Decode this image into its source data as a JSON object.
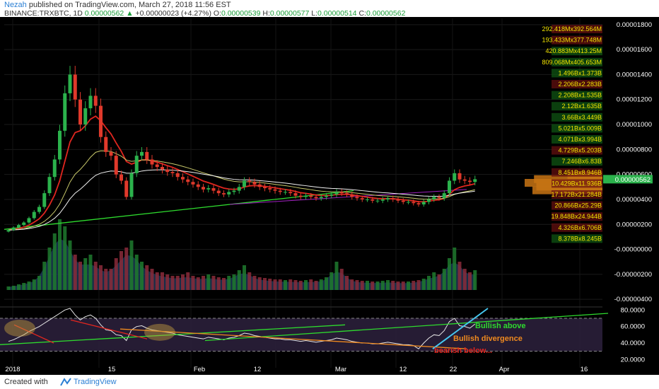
{
  "header": {
    "author": "Nezah",
    "published_text": " published on TradingView.com, March 27, 2018 11:56 EST",
    "symbol": "BINANCE:TRXBTC, 1D",
    "last": "0.00000562",
    "change_arrow": "▲",
    "change": "+0.00000023 (+4.27%)",
    "o_label": "O:",
    "o": "0.00000539",
    "h_label": "H:",
    "h": "0.00000577",
    "l_label": "L:",
    "l": "0.00000514",
    "c_label": "C:",
    "c": "0.00000562"
  },
  "footer": {
    "created_with": "Created with",
    "brand": "TradingView"
  },
  "colors": {
    "background": "#000000",
    "up_candle": "#2bb24c",
    "down_candle": "#e0392b",
    "ema_fast": "#e0261f",
    "ema_mid": "#c8c86a",
    "ema_slow": "#f0f0f0",
    "trend_green": "#2edb2e",
    "volume_up": "#1e7a2e",
    "volume_down": "#8a2a3a",
    "volume_area": "#1c3a5a",
    "rsi_line": "#e8e8e8",
    "rsi_band": "#2a1f3a",
    "rsi_uptrend": "#46c8f0",
    "rsi_downtrend": "#f08a1e",
    "axis_text": "#ffffff",
    "label_yellow": "#f5e600",
    "price_tag": "#2bb24c",
    "volume_profile": "#c87414"
  },
  "price_axis": {
    "labels": [
      "0.00001800",
      "0.00001600",
      "0.00001400",
      "0.00001200",
      "0.00001000",
      "0.00000800",
      "0.00000600",
      "0.00000400",
      "0.00000200",
      "-0.00000000",
      "-0.00000200",
      "-0.00000400"
    ],
    "values": [
      1.8e-05,
      1.6e-05,
      1.4e-05,
      1.2e-05,
      1e-05,
      8e-06,
      6e-06,
      4e-06,
      2e-06,
      0,
      -2e-06,
      -4e-06
    ],
    "last_tag": "0.00000562"
  },
  "rsi_axis": {
    "labels": [
      "80.0000",
      "60.0000",
      "40.0000",
      "20.0000"
    ],
    "values": [
      80,
      60,
      40,
      20
    ]
  },
  "time_axis": {
    "labels": [
      "2018",
      "15",
      "Feb",
      "12",
      "Mar",
      "12",
      "22",
      "Apr",
      "16"
    ]
  },
  "volume_labels": [
    {
      "text": "292.418Mx392.564M",
      "status": "down"
    },
    {
      "text": "193.433Mx377.748M",
      "status": "down"
    },
    {
      "text": "420.883Mx413.25M",
      "status": "up"
    },
    {
      "text": "809.068Mx405.653M",
      "status": "up"
    },
    {
      "text": "1.496Bx1.373B",
      "status": "up"
    },
    {
      "text": "2.206Bx2.283B",
      "status": "down"
    },
    {
      "text": "2.208Bx1.535B",
      "status": "up"
    },
    {
      "text": "2.12Bx1.635B",
      "status": "up"
    },
    {
      "text": "3.66Bx3.449B",
      "status": "up"
    },
    {
      "text": "5.021Bx5.009B",
      "status": "up"
    },
    {
      "text": "4.071Bx3.994B",
      "status": "up"
    },
    {
      "text": "4.729Bx5.203B",
      "status": "down"
    },
    {
      "text": "7.246Bx6.83B",
      "status": "up"
    },
    {
      "text": "8.451Bx8.946B",
      "status": "down"
    },
    {
      "text": "10.429Bx11.936B",
      "status": "down"
    },
    {
      "text": "17.172Bx21.284B",
      "status": "down"
    },
    {
      "text": "20.866Bx25.29B",
      "status": "down"
    },
    {
      "text": "19.848Bx24.944B",
      "status": "down"
    },
    {
      "text": "4.326Bx6.706B",
      "status": "down"
    },
    {
      "text": "8.378Bx8.245B",
      "status": "up"
    }
  ],
  "annotations": {
    "bullish_above": "Bullish above",
    "bullish_divergence": "Bullish divergence",
    "bearish_below": "bearish below..."
  },
  "chart_data": {
    "type": "candlestick",
    "symbol": "BINANCE:TRXBTC",
    "interval": "1D",
    "x": [
      "Dec 26",
      "Dec 27",
      "Dec 28",
      "Dec 29",
      "Dec 30",
      "Dec 31",
      "Jan 1",
      "Jan 2",
      "Jan 3",
      "Jan 4",
      "Jan 5",
      "Jan 6",
      "Jan 7",
      "Jan 8",
      "Jan 9",
      "Jan 10",
      "Jan 11",
      "Jan 12",
      "Jan 13",
      "Jan 14",
      "Jan 15",
      "Jan 16",
      "Jan 17",
      "Jan 18",
      "Jan 19",
      "Jan 20",
      "Jan 21",
      "Jan 22",
      "Jan 23",
      "Jan 24",
      "Jan 25",
      "Jan 26",
      "Jan 27",
      "Jan 28",
      "Jan 29",
      "Jan 30",
      "Jan 31",
      "Feb 1",
      "Feb 2",
      "Feb 3",
      "Feb 4",
      "Feb 5",
      "Feb 6",
      "Feb 7",
      "Feb 8",
      "Feb 9",
      "Feb 10",
      "Feb 11",
      "Feb 12",
      "Feb 13",
      "Feb 14",
      "Feb 15",
      "Feb 16",
      "Feb 17",
      "Feb 18",
      "Feb 19",
      "Feb 20",
      "Feb 21",
      "Feb 22",
      "Feb 23",
      "Feb 24",
      "Feb 25",
      "Feb 26",
      "Feb 27",
      "Feb 28",
      "Mar 1",
      "Mar 2",
      "Mar 3",
      "Mar 4",
      "Mar 5",
      "Mar 6",
      "Mar 7",
      "Mar 8",
      "Mar 9",
      "Mar 10",
      "Mar 11",
      "Mar 12",
      "Mar 13",
      "Mar 14",
      "Mar 15",
      "Mar 16",
      "Mar 17",
      "Mar 18",
      "Mar 19",
      "Mar 20",
      "Mar 21",
      "Mar 22",
      "Mar 23",
      "Mar 24",
      "Mar 25",
      "Mar 26",
      "Mar 27"
    ],
    "close": [
      1.55e-06,
      1.75e-06,
      1.95e-06,
      2.15e-06,
      2.5e-06,
      3e-06,
      3.4e-06,
      4.5e-06,
      5.8e-06,
      7.2e-06,
      9.5e-06,
      1.25e-05,
      1.4e-05,
      1.2e-05,
      1e-05,
      1.13e-05,
      1.23e-05,
      1.15e-05,
      9e-06,
      7.8e-06,
      7.5e-06,
      6e-06,
      5.5e-06,
      4.2e-06,
      6.1e-06,
      7.5e-06,
      7.8e-06,
      7.2e-06,
      6.8e-06,
      6.6e-06,
      6.4e-06,
      6.2e-06,
      6.1e-06,
      5.8e-06,
      5.6e-06,
      5.4e-06,
      5.2e-06,
      5e-06,
      4.8e-06,
      4.9e-06,
      4.7e-06,
      4.5e-06,
      4.4e-06,
      4.6e-06,
      4.7e-06,
      5e-06,
      5.5e-06,
      5.4e-06,
      5.2e-06,
      5e-06,
      4.9e-06,
      4.8e-06,
      4.7e-06,
      4.6e-06,
      4.6e-06,
      4.5e-06,
      4.3e-06,
      4.2e-06,
      4.3e-06,
      4.2e-06,
      4.1e-06,
      4.2e-06,
      4.3e-06,
      4.4e-06,
      4.6e-06,
      4.5e-06,
      4.4e-06,
      4.2e-06,
      4.1e-06,
      4e-06,
      4e-06,
      3.9e-06,
      3.9e-06,
      4e-06,
      4.1e-06,
      4e-06,
      3.9e-06,
      3.8e-06,
      3.8e-06,
      3.7e-06,
      3.6e-06,
      3.8e-06,
      4e-06,
      4.2e-06,
      4.1e-06,
      4.5e-06,
      5.5e-06,
      6.1e-06,
      5.6e-06,
      5.5e-06,
      5.4e-06,
      5.62e-06
    ],
    "price_range": [
      -4.5e-06,
      1.85e-05
    ],
    "rsi": [
      42,
      44,
      47,
      50,
      54,
      57,
      60,
      64,
      68,
      72,
      76,
      80,
      82,
      74,
      68,
      72,
      74,
      70,
      62,
      56,
      55,
      50,
      49,
      43,
      56,
      60,
      61,
      58,
      56,
      55,
      54,
      53,
      52,
      50,
      49,
      48,
      47,
      46,
      45,
      47,
      46,
      45,
      44,
      46,
      47,
      49,
      52,
      51,
      49,
      48,
      47,
      46,
      45,
      45,
      44,
      44,
      43,
      42,
      43,
      42,
      41,
      42,
      43,
      44,
      46,
      45,
      44,
      42,
      41,
      40,
      40,
      39,
      39,
      40,
      41,
      40,
      39,
      38,
      38,
      37,
      33,
      40,
      46,
      50,
      49,
      55,
      66,
      70,
      61,
      60,
      58,
      63
    ],
    "rsi_range": [
      10,
      82
    ],
    "volume": [
      0.05,
      0.06,
      0.08,
      0.1,
      0.12,
      0.15,
      0.2,
      0.4,
      0.6,
      0.8,
      1.0,
      0.9,
      0.7,
      0.5,
      0.4,
      0.45,
      0.5,
      0.4,
      0.35,
      0.3,
      0.3,
      0.45,
      0.55,
      0.6,
      0.7,
      0.5,
      0.4,
      0.35,
      0.3,
      0.25,
      0.25,
      0.22,
      0.2,
      0.2,
      0.22,
      0.25,
      0.2,
      0.18,
      0.2,
      0.22,
      0.2,
      0.18,
      0.17,
      0.2,
      0.22,
      0.28,
      0.35,
      0.25,
      0.2,
      0.18,
      0.17,
      0.16,
      0.15,
      0.15,
      0.14,
      0.15,
      0.14,
      0.13,
      0.14,
      0.15,
      0.13,
      0.15,
      0.18,
      0.25,
      0.4,
      0.3,
      0.2,
      0.15,
      0.14,
      0.13,
      0.13,
      0.12,
      0.12,
      0.13,
      0.14,
      0.13,
      0.12,
      0.12,
      0.12,
      0.13,
      0.14,
      0.16,
      0.2,
      0.25,
      0.22,
      0.3,
      0.45,
      0.6,
      0.4,
      0.3,
      0.25,
      0.28
    ],
    "volume_profile_rows": [
      {
        "price": 5.9e-06,
        "size": 0.45
      },
      {
        "price": 5.6e-06,
        "size": 0.88
      },
      {
        "price": 5.3e-06,
        "size": 1.0
      },
      {
        "price": 5e-06,
        "size": 0.85
      },
      {
        "price": 4.7e-06,
        "size": 0.9
      }
    ],
    "annotations": [
      "Bullish above",
      "Bullish divergence",
      "bearish below..."
    ]
  }
}
